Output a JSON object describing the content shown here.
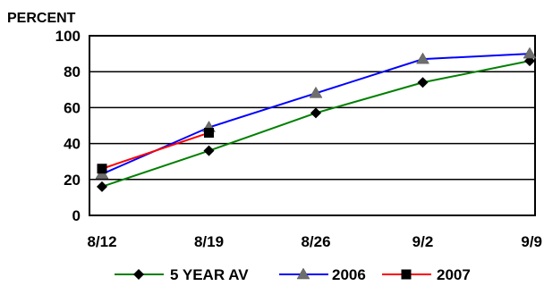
{
  "chart_data": {
    "type": "line",
    "title": "",
    "xlabel": "",
    "ylabel": "PERCENT",
    "categories": [
      "8/12",
      "8/19",
      "8/26",
      "9/2",
      "9/9"
    ],
    "ylim": [
      0,
      100
    ],
    "yticks": [
      0,
      20,
      40,
      60,
      80,
      100
    ],
    "grid": true,
    "legend_position": "bottom",
    "series": [
      {
        "name": "5 YEAR AV",
        "values": [
          16,
          36,
          57,
          74,
          86
        ],
        "color": "#008000",
        "marker": "diamond"
      },
      {
        "name": "2006",
        "values": [
          23,
          49,
          68,
          87,
          90
        ],
        "color": "#0000ff",
        "marker": "triangle"
      },
      {
        "name": "2007",
        "values": [
          26,
          46,
          null,
          null,
          null
        ],
        "color": "#ff0000",
        "marker": "square"
      }
    ]
  }
}
